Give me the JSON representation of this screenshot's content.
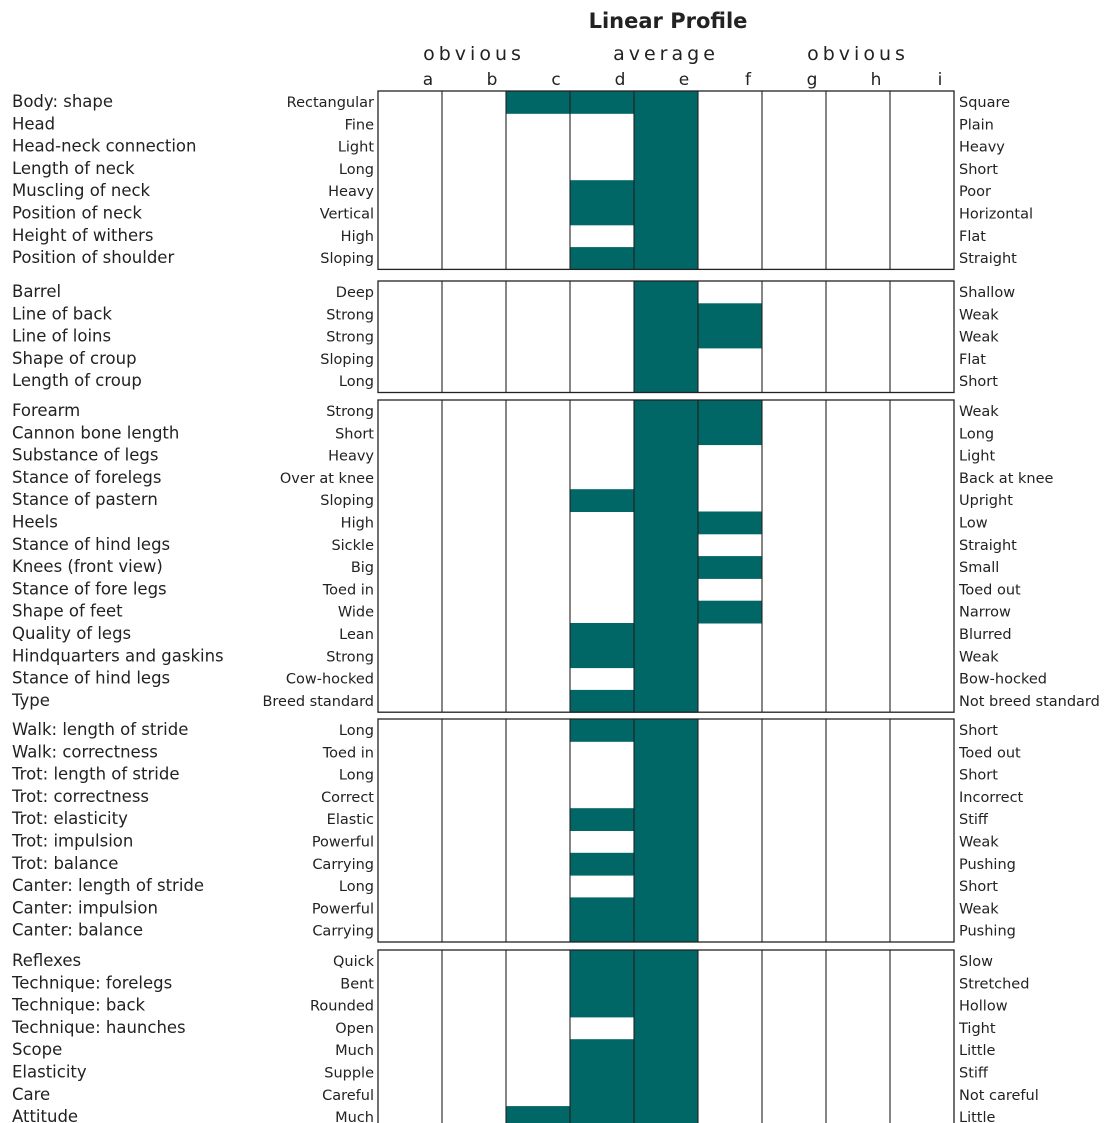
{
  "chart_data": {
    "type": "table",
    "title": "Linear Profile",
    "scale_groups": [
      "obvious",
      "average",
      "obvious"
    ],
    "columns": [
      "a",
      "b",
      "c",
      "d",
      "e",
      "f",
      "g",
      "h",
      "i"
    ],
    "bar_color": "#006666",
    "sections": [
      {
        "rows": [
          {
            "trait": "Body: shape",
            "left": "Rectangular",
            "right": "Square",
            "cols": [
              "c",
              "e"
            ]
          },
          {
            "trait": "Head",
            "left": "Fine",
            "right": "Plain",
            "cols": [
              "e",
              "e"
            ]
          },
          {
            "trait": "Head-neck connection",
            "left": "Light",
            "right": "Heavy",
            "cols": [
              "e",
              "e"
            ]
          },
          {
            "trait": "Length of neck",
            "left": "Long",
            "right": "Short",
            "cols": [
              "e",
              "e"
            ]
          },
          {
            "trait": "Muscling of neck",
            "left": "Heavy",
            "right": "Poor",
            "cols": [
              "d",
              "e"
            ]
          },
          {
            "trait": "Position of neck",
            "left": "Vertical",
            "right": "Horizontal",
            "cols": [
              "d",
              "e"
            ]
          },
          {
            "trait": "Height of withers",
            "left": "High",
            "right": "Flat",
            "cols": [
              "e",
              "e"
            ]
          },
          {
            "trait": "Position of shoulder",
            "left": "Sloping",
            "right": "Straight",
            "cols": [
              "d",
              "e"
            ]
          }
        ]
      },
      {
        "rows": [
          {
            "trait": "Barrel",
            "left": "Deep",
            "right": "Shallow",
            "cols": [
              "e",
              "e"
            ]
          },
          {
            "trait": "Line of back",
            "left": "Strong",
            "right": "Weak",
            "cols": [
              "e",
              "f"
            ]
          },
          {
            "trait": "Line of loins",
            "left": "Strong",
            "right": "Weak",
            "cols": [
              "e",
              "f"
            ]
          },
          {
            "trait": "Shape of croup",
            "left": "Sloping",
            "right": "Flat",
            "cols": [
              "e",
              "e"
            ]
          },
          {
            "trait": "Length of croup",
            "left": "Long",
            "right": "Short",
            "cols": [
              "e",
              "e"
            ]
          }
        ]
      },
      {
        "rows": [
          {
            "trait": "Forearm",
            "left": "Strong",
            "right": "Weak",
            "cols": [
              "e",
              "f"
            ]
          },
          {
            "trait": "Cannon bone length",
            "left": "Short",
            "right": "Long",
            "cols": [
              "e",
              "f"
            ]
          },
          {
            "trait": "Substance of legs",
            "left": "Heavy",
            "right": "Light",
            "cols": [
              "e",
              "e"
            ]
          },
          {
            "trait": "Stance of forelegs",
            "left": "Over at knee",
            "right": "Back at knee",
            "cols": [
              "e",
              "e"
            ]
          },
          {
            "trait": "Stance of pastern",
            "left": "Sloping",
            "right": "Upright",
            "cols": [
              "d",
              "e"
            ]
          },
          {
            "trait": "Heels",
            "left": "High",
            "right": "Low",
            "cols": [
              "e",
              "f"
            ]
          },
          {
            "trait": "Stance of hind legs",
            "left": "Sickle",
            "right": "Straight",
            "cols": [
              "e",
              "e"
            ]
          },
          {
            "trait": "Knees (front view)",
            "left": "Big",
            "right": "Small",
            "cols": [
              "e",
              "f"
            ]
          },
          {
            "trait": "Stance of fore legs",
            "left": "Toed in",
            "right": "Toed out",
            "cols": [
              "e",
              "e"
            ]
          },
          {
            "trait": "Shape of feet",
            "left": "Wide",
            "right": "Narrow",
            "cols": [
              "e",
              "f"
            ]
          },
          {
            "trait": "Quality of legs",
            "left": "Lean",
            "right": "Blurred",
            "cols": [
              "d",
              "e"
            ]
          },
          {
            "trait": "Hindquarters and gaskins",
            "left": "Strong",
            "right": "Weak",
            "cols": [
              "d",
              "e"
            ]
          },
          {
            "trait": "Stance of hind legs",
            "left": "Cow-hocked",
            "right": "Bow-hocked",
            "cols": [
              "e",
              "e"
            ]
          },
          {
            "trait": "Type",
            "left": "Breed standard",
            "right": "Not breed standard",
            "cols": [
              "d",
              "e"
            ]
          }
        ]
      },
      {
        "rows": [
          {
            "trait": "Walk: length of stride",
            "left": "Long",
            "right": "Short",
            "cols": [
              "d",
              "e"
            ]
          },
          {
            "trait": "Walk: correctness",
            "left": "Toed in",
            "right": "Toed out",
            "cols": [
              "e",
              "e"
            ]
          },
          {
            "trait": "Trot: length of stride",
            "left": "Long",
            "right": "Short",
            "cols": [
              "e",
              "e"
            ]
          },
          {
            "trait": "Trot: correctness",
            "left": "Correct",
            "right": "Incorrect",
            "cols": [
              "e",
              "e"
            ]
          },
          {
            "trait": "Trot: elasticity",
            "left": "Elastic",
            "right": "Stiff",
            "cols": [
              "d",
              "e"
            ]
          },
          {
            "trait": "Trot: impulsion",
            "left": "Powerful",
            "right": "Weak",
            "cols": [
              "e",
              "e"
            ]
          },
          {
            "trait": "Trot: balance",
            "left": "Carrying",
            "right": "Pushing",
            "cols": [
              "d",
              "e"
            ]
          },
          {
            "trait": "Canter: length of stride",
            "left": "Long",
            "right": "Short",
            "cols": [
              "e",
              "e"
            ]
          },
          {
            "trait": "Canter: impulsion",
            "left": "Powerful",
            "right": "Weak",
            "cols": [
              "d",
              "e"
            ]
          },
          {
            "trait": "Canter: balance",
            "left": "Carrying",
            "right": "Pushing",
            "cols": [
              "d",
              "e"
            ]
          }
        ]
      },
      {
        "rows": [
          {
            "trait": "Reflexes",
            "left": "Quick",
            "right": "Slow",
            "cols": [
              "d",
              "e"
            ]
          },
          {
            "trait": "Technique: forelegs",
            "left": "Bent",
            "right": "Stretched",
            "cols": [
              "d",
              "e"
            ]
          },
          {
            "trait": "Technique: back",
            "left": "Rounded",
            "right": "Hollow",
            "cols": [
              "d",
              "e"
            ]
          },
          {
            "trait": "Technique: haunches",
            "left": "Open",
            "right": "Tight",
            "cols": [
              "e",
              "e"
            ]
          },
          {
            "trait": "Scope",
            "left": "Much",
            "right": "Little",
            "cols": [
              "d",
              "e"
            ]
          },
          {
            "trait": "Elasticity",
            "left": "Supple",
            "right": "Stiff",
            "cols": [
              "d",
              "e"
            ]
          },
          {
            "trait": "Care",
            "left": "Careful",
            "right": "Not careful",
            "cols": [
              "d",
              "e"
            ]
          },
          {
            "trait": "Attitude",
            "left": "Much",
            "right": "Little",
            "cols": [
              "c",
              "e"
            ]
          }
        ]
      }
    ]
  }
}
